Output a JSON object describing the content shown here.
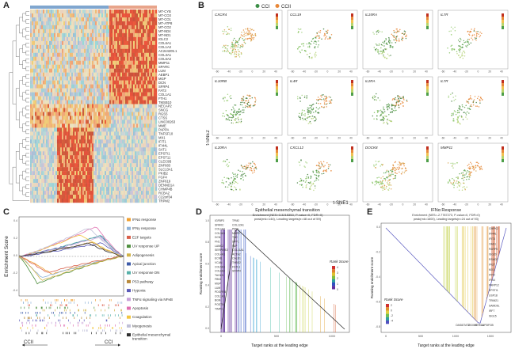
{
  "panel_labels": {
    "a": "A",
    "b": "B",
    "c": "C",
    "d": "D",
    "e": "E"
  },
  "heatmap": {
    "groups": [
      "CCI",
      "CCII"
    ],
    "group_colors": [
      "#7fa6cf",
      "#e8a48a"
    ],
    "genes": [
      "MT-CYB",
      "MT-CO3",
      "MT-CO1",
      "MT-ATP8",
      "MT-CO2",
      "MT-ND4",
      "MT-ND1",
      "IGLC2",
      "COL6A1",
      "COL1A2",
      "AC244205.1",
      "COL3A1",
      "COL6A2",
      "MMP11",
      "SPARC",
      "LUM",
      "AEBP1",
      "MGP",
      "DCN",
      "SFRP4",
      "FAT3",
      "COL1A1",
      "FTH1",
      "TMSB10",
      "NECAP2",
      "SNCG",
      "RGS5",
      "CTSS",
      "LINC00263",
      "MME",
      "PAPPA",
      "TNFSF10",
      "MX1",
      "IFIT1",
      "IFI44L",
      "SAT1",
      "EPSTI1",
      "EPST11",
      "CLEC9B",
      "ZNF683",
      "SLC13A1",
      "PKIB2",
      "FGF4",
      "ZNF619",
      "DENND1A",
      "CHMP4B",
      "RCBA2",
      "C22orf34",
      "TRPM2"
    ]
  },
  "tsne": {
    "legend": [
      "CCI",
      "CCII"
    ],
    "legend_colors": [
      "#3d8f48",
      "#e8883a"
    ],
    "xlabel": "t-SNE1",
    "ylabel": "t-SNE2",
    "panels": [
      "CXCR4",
      "CCL19",
      "IL15RA",
      "IL7R",
      "IL10RB",
      "IL4R",
      "IL2RA",
      "IL7R",
      "IL20RA",
      "CXCL12",
      "DOCK8",
      "MMP11"
    ],
    "tick_labels_x": [
      "-60",
      "-40",
      "-20",
      "0",
      "20",
      "40"
    ]
  },
  "gsea_c": {
    "ylabel": "Enrichment Score",
    "left_label": "CCII",
    "right_label": "CCI",
    "pathways": [
      {
        "name": "IFNα response",
        "color": "#f0a030"
      },
      {
        "name": "IFNγ response",
        "color": "#8fb3d9"
      },
      {
        "name": "E2F targets",
        "color": "#d95f4a"
      },
      {
        "name": "UV response UP",
        "color": "#4f8f3f"
      },
      {
        "name": "Adipogenesis",
        "color": "#d2b44a"
      },
      {
        "name": "Apical junction",
        "color": "#3d5aa8"
      },
      {
        "name": "UV response DN",
        "color": "#56b0a8"
      },
      {
        "name": "P53 pathway",
        "color": "#b8893a"
      },
      {
        "name": "Hypoxia",
        "color": "#5a5ab8"
      },
      {
        "name": "TNFα signaling via NFκB",
        "color": "#c8a0d8"
      },
      {
        "name": "Apoptosis",
        "color": "#e070b0"
      },
      {
        "name": "Coagulation",
        "color": "#f2c640"
      },
      {
        "name": "Myogenesis",
        "color": "#c0c0d8"
      },
      {
        "name": "Epithelial mesenchymal transition",
        "color": "#303030"
      }
    ]
  },
  "gsea_d": {
    "title": "Epithelial mesenchymal transition",
    "stats": "Enrichment (NES=3.3215353, P-value=0, FDR=0)",
    "stats2": "peak(rnk=144), Leading targets(n=48 out of 59)",
    "ylabel": "Running enrichment score",
    "xlabel": "Target ranks at the leading edge",
    "legend_title": "Rank Score",
    "legend_ticks": [
      "4",
      "3",
      "2",
      "1",
      "0"
    ],
    "x_ticks": [
      "0",
      "500",
      "1000"
    ],
    "y_ticks": [
      "0.0",
      "0.2",
      "0.4",
      "0.6",
      "0.8",
      "1.0"
    ],
    "genes": [
      "IGFBP3",
      "SPARC",
      "COL1A2",
      "COL3A1",
      "DCN",
      "FN1",
      "LAMC2",
      "SERPINE2",
      "COL4A1",
      "ECM1",
      "VCAN",
      "COL5A1",
      "COL6A2",
      "TAGLN",
      "FBN1",
      "MGP",
      "LUM",
      "PDGFRB",
      "COL1A1",
      "BGN",
      "POSTN",
      "TIMP1",
      "TPM2",
      "COL12A1",
      "PPIB",
      "MMP2",
      "TNC",
      "SPP1",
      "FAP",
      "COL11A1",
      "ACTA2",
      "CALD1",
      "THBS2",
      "FSTL1",
      "SFRP4"
    ]
  },
  "gsea_e": {
    "title": "IFNα Response",
    "stats": "Enrichment (NES=-2.7787273, P-value=0, FDR=0)",
    "stats2": "peak(rnk=1600), Leading targets(n=24 out of 93)",
    "ylabel": "Running enrichment score",
    "xlabel": "Target ranks at the leading edge",
    "legend_title": "Rank Score",
    "legend_ticks": [
      "2",
      "0",
      "-2",
      "-4"
    ],
    "x_ticks": [
      "0",
      "500",
      "1000",
      "1500"
    ],
    "y_ticks": [
      "0.0",
      "-0.2",
      "-0.4",
      "-0.6",
      "-0.8"
    ],
    "genes": [
      "CMPK2",
      "IFI44L",
      "IFIT3",
      "OAS1",
      "PARP9",
      "ISG20",
      "RSAD2",
      "IFI27",
      "MX1",
      "IFIT2",
      "IFI44",
      "PARP12",
      "EPSTI1",
      "USP18",
      "TRIM21",
      "SAMD9L",
      "IRF7",
      "ISG15",
      "OASL",
      "STAT2",
      "DDX60",
      "HERC6",
      "LAP3",
      "IFI35"
    ]
  }
}
